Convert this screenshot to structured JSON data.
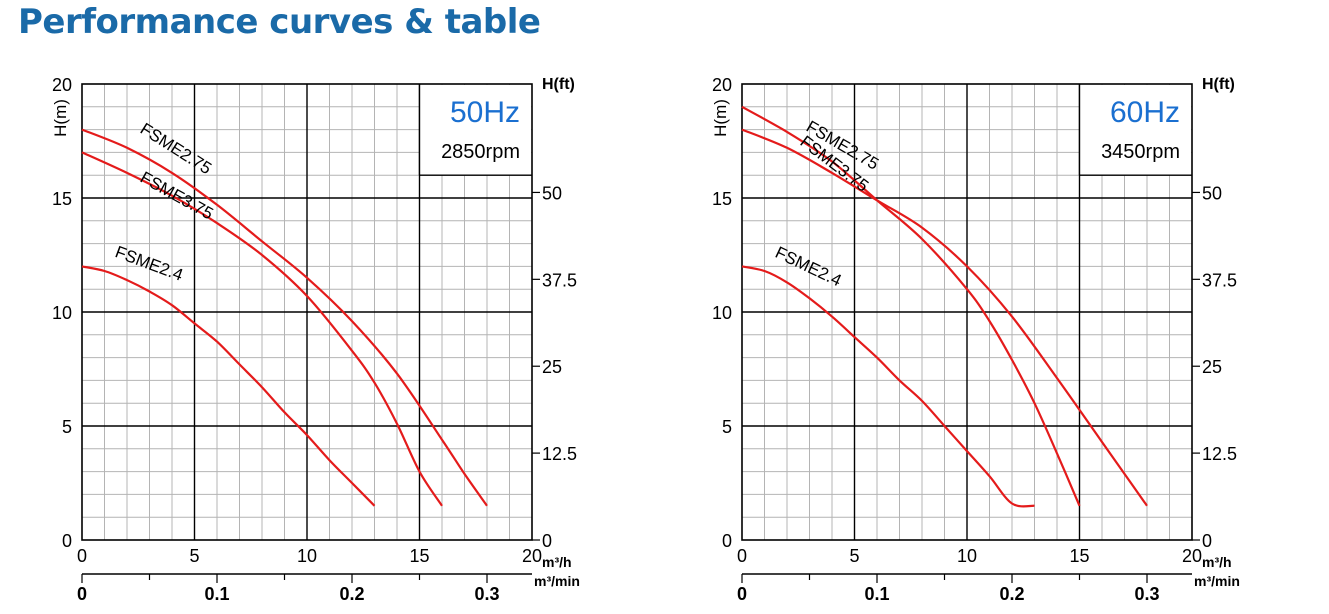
{
  "page": {
    "title": "Performance curves & table"
  },
  "chart_data": [
    {
      "type": "line",
      "freq_label": "50Hz",
      "rpm_label": "2850rpm",
      "ylabel": "H(m)",
      "y2label": "H(ft)",
      "xlabel": "m³/h",
      "x2label": "m³/min",
      "xlim": [
        0,
        20
      ],
      "ylim": [
        0,
        20
      ],
      "x_ticks": [
        "0",
        "5",
        "10",
        "15",
        "20"
      ],
      "y_ticks": [
        "0",
        "5",
        "10",
        "15",
        "20"
      ],
      "y2_ticks": [
        "0",
        "12.5",
        "25",
        "37.5",
        "50"
      ],
      "x2_ticks": [
        "0",
        "0.1",
        "0.2",
        "0.3"
      ],
      "grid": true,
      "series": [
        {
          "name": "FSME2.75",
          "x": [
            0,
            2,
            4,
            6,
            8,
            10,
            12,
            14,
            16,
            17,
            18
          ],
          "y": [
            18,
            17.2,
            16.1,
            14.7,
            13.1,
            11.5,
            9.6,
            7.3,
            4.4,
            2.9,
            1.5
          ]
        },
        {
          "name": "FSME3.75",
          "x": [
            0,
            2,
            4,
            6,
            8,
            10,
            12,
            13,
            14,
            15,
            16
          ],
          "y": [
            17,
            16.1,
            15.1,
            13.9,
            12.5,
            10.7,
            8.3,
            6.9,
            5.1,
            3.0,
            1.5
          ]
        },
        {
          "name": "FSME2.4",
          "x": [
            0,
            1,
            2,
            3,
            4,
            5,
            6,
            7,
            8,
            9,
            10,
            11,
            12,
            13
          ],
          "y": [
            12,
            11.8,
            11.4,
            10.9,
            10.3,
            9.5,
            8.7,
            7.7,
            6.7,
            5.6,
            4.6,
            3.5,
            2.5,
            1.5
          ]
        }
      ]
    },
    {
      "type": "line",
      "freq_label": "60Hz",
      "rpm_label": "3450rpm",
      "ylabel": "H(m)",
      "y2label": "H(ft)",
      "xlabel": "m³/h",
      "x2label": "m³/min",
      "xlim": [
        0,
        20
      ],
      "ylim": [
        0,
        20
      ],
      "x_ticks": [
        "0",
        "5",
        "10",
        "15",
        "20"
      ],
      "y_ticks": [
        "0",
        "5",
        "10",
        "15",
        "20"
      ],
      "y2_ticks": [
        "0",
        "12.5",
        "25",
        "37.5",
        "50"
      ],
      "x2_ticks": [
        "0",
        "0.1",
        "0.2",
        "0.3"
      ],
      "grid": true,
      "series": [
        {
          "name": "FSME2.75",
          "x": [
            0,
            2,
            4,
            6,
            8,
            10,
            12,
            14,
            16,
            17,
            18
          ],
          "y": [
            18,
            17.2,
            16.1,
            14.9,
            13.7,
            12.0,
            9.8,
            7.1,
            4.3,
            2.9,
            1.5
          ]
        },
        {
          "name": "FSME3.75",
          "x": [
            0,
            2,
            4,
            6,
            8,
            10,
            11,
            12,
            13,
            14,
            15
          ],
          "y": [
            19,
            17.9,
            16.6,
            14.9,
            13.2,
            11.0,
            9.6,
            7.9,
            6.0,
            3.8,
            1.5
          ]
        },
        {
          "name": "FSME2.4",
          "x": [
            0,
            1,
            2,
            3,
            4,
            5,
            6,
            7,
            8,
            9,
            10,
            11,
            12,
            13
          ],
          "y": [
            12,
            11.8,
            11.3,
            10.6,
            9.8,
            8.9,
            8.0,
            7.0,
            6.1,
            5.0,
            3.9,
            2.8,
            1.6,
            1.5
          ]
        }
      ]
    }
  ]
}
